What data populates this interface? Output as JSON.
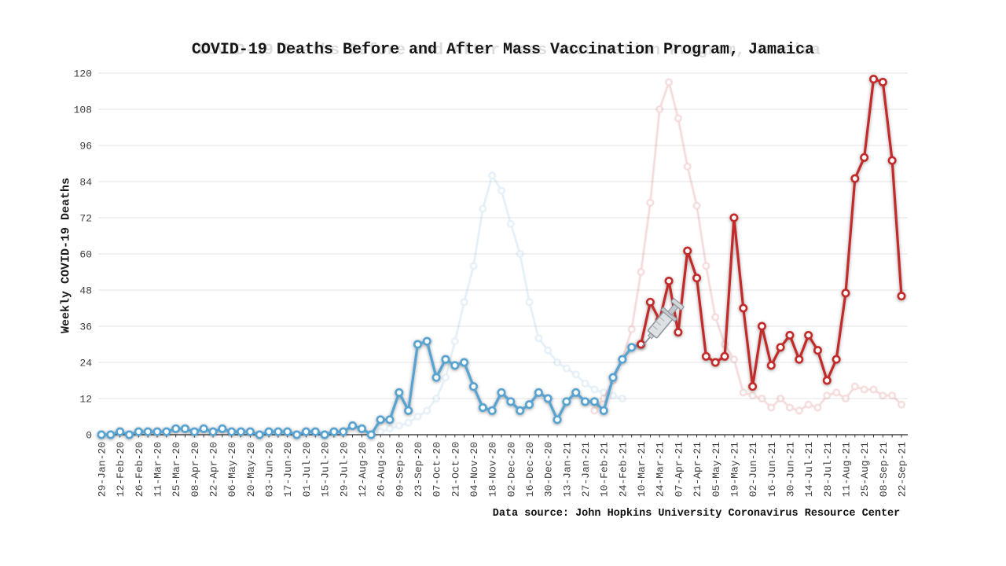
{
  "title": "COVID-19 Deaths Before and After Mass Vaccination Program, Jamaica",
  "footer": "Data source: John Hopkins University Coronavirus Resource Center",
  "y_axis": {
    "label": "Weekly COVID-19 Deaths",
    "ticks": [
      0,
      12,
      24,
      36,
      48,
      60,
      72,
      84,
      96,
      108,
      120
    ],
    "min": 0,
    "max": 120
  },
  "x_axis": {
    "note": "weekly data points, tick labels every 2nd point",
    "tick_labels": [
      "29-Jan-20",
      "12-Feb-20",
      "26-Feb-20",
      "11-Mar-20",
      "25-Mar-20",
      "08-Apr-20",
      "22-Apr-20",
      "06-May-20",
      "20-May-20",
      "03-Jun-20",
      "17-Jun-20",
      "01-Jul-20",
      "15-Jul-20",
      "29-Jul-20",
      "12-Aug-20",
      "26-Aug-20",
      "09-Sep-20",
      "23-Sep-20",
      "07-Oct-20",
      "21-Oct-20",
      "04-Nov-20",
      "18-Nov-20",
      "02-Dec-20",
      "16-Dec-20",
      "30-Dec-20",
      "13-Jan-21",
      "27-Jan-21",
      "10-Feb-21",
      "24-Feb-21",
      "10-Mar-21",
      "24-Mar-21",
      "07-Apr-21",
      "21-Apr-21",
      "05-May-21",
      "19-May-21",
      "02-Jun-21",
      "16-Jun-21",
      "30-Jun-21",
      "14-Jul-21",
      "28-Jul-21",
      "11-Aug-21",
      "25-Aug-21",
      "08-Sep-21",
      "22-Sep-21"
    ]
  },
  "chart_data": {
    "type": "line",
    "title": "COVID-19 Deaths Before and After Mass Vaccination Program, Jamaica",
    "xlabel": "",
    "ylabel": "Weekly COVID-19 Deaths",
    "ylim": [
      0,
      120
    ],
    "grid": "horizontal",
    "legend": "none",
    "n_points": 87,
    "points_per_label": 2,
    "x_tick_labels": [
      "29-Jan-20",
      "12-Feb-20",
      "26-Feb-20",
      "11-Mar-20",
      "25-Mar-20",
      "08-Apr-20",
      "22-Apr-20",
      "06-May-20",
      "20-May-20",
      "03-Jun-20",
      "17-Jun-20",
      "01-Jul-20",
      "15-Jul-20",
      "29-Jul-20",
      "12-Aug-20",
      "26-Aug-20",
      "09-Sep-20",
      "23-Sep-20",
      "07-Oct-20",
      "21-Oct-20",
      "04-Nov-20",
      "18-Nov-20",
      "02-Dec-20",
      "16-Dec-20",
      "30-Dec-20",
      "13-Jan-21",
      "27-Jan-21",
      "10-Feb-21",
      "24-Feb-21",
      "10-Mar-21",
      "24-Mar-21",
      "07-Apr-21",
      "21-Apr-21",
      "05-May-21",
      "19-May-21",
      "02-Jun-21",
      "16-Jun-21",
      "30-Jun-21",
      "14-Jul-21",
      "28-Jul-21",
      "11-Aug-21",
      "25-Aug-21",
      "08-Sep-21",
      "22-Sep-21"
    ],
    "series": [
      {
        "name": "ghost-wave-blue-faded",
        "color": "#4f9bcc",
        "opacity": 0.16,
        "start_index": 30,
        "values": [
          1,
          2,
          3,
          4,
          6,
          8,
          12,
          19,
          31,
          44,
          56,
          75,
          86,
          81,
          70,
          60,
          44,
          32,
          28,
          24,
          22,
          20,
          17,
          15,
          14,
          13,
          12
        ]
      },
      {
        "name": "ghost-wave-red-faded",
        "color": "#c94040",
        "opacity": 0.2,
        "start_index": 53,
        "values": [
          8,
          12,
          18,
          25,
          35,
          54,
          77,
          108,
          117,
          105,
          89,
          76,
          56,
          39,
          30,
          25,
          14,
          13,
          12,
          9,
          12,
          9,
          8,
          10,
          9,
          13,
          14,
          12,
          16,
          15,
          15,
          13,
          13,
          10
        ]
      },
      {
        "name": "deaths-before-vaccination",
        "color": "#57a3d2",
        "opacity": 1,
        "start_index": 0,
        "values": [
          0,
          0,
          1,
          0,
          1,
          1,
          1,
          1,
          2,
          2,
          1,
          2,
          1,
          2,
          1,
          1,
          1,
          0,
          1,
          1,
          1,
          0,
          1,
          1,
          0,
          1,
          1,
          3,
          2,
          0,
          5,
          5,
          14,
          8,
          30,
          31,
          19,
          25,
          23,
          24,
          16,
          9,
          8,
          14,
          11,
          8,
          10,
          14,
          12,
          5,
          11,
          14,
          11,
          11,
          8,
          19,
          25,
          29,
          30
        ]
      },
      {
        "name": "deaths-after-vaccination",
        "color": "#c32b2b",
        "opacity": 1,
        "start_index": 58,
        "values": [
          30,
          44,
          38,
          51,
          34,
          61,
          52,
          26,
          24,
          26,
          72,
          42,
          16,
          36,
          23,
          29,
          33,
          25,
          33,
          28,
          18,
          25,
          47,
          85,
          92,
          118,
          117,
          91,
          46
        ]
      }
    ],
    "annotation": {
      "icon": "syringe-icon",
      "label": "mass vaccination program start",
      "at_point_index": 58,
      "value": 30
    }
  }
}
